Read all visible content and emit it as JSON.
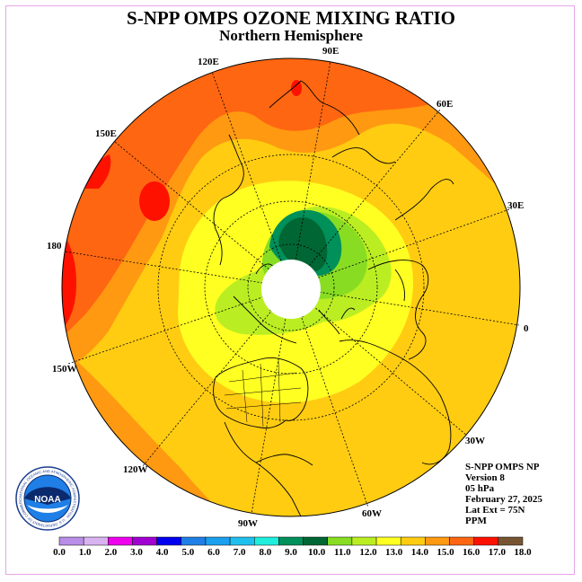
{
  "header": {
    "title": "S-NPP OMPS OZONE MIXING RATIO",
    "subtitle": "Northern Hemisphere"
  },
  "meridian_labels": [
    {
      "text": "90E",
      "id": "meridian-label-90e"
    },
    {
      "text": "120E",
      "id": "meridian-label-120e"
    },
    {
      "text": "60E",
      "id": "meridian-label-60e"
    },
    {
      "text": "150E",
      "id": "meridian-label-150e"
    },
    {
      "text": "30E",
      "id": "meridian-label-30e"
    },
    {
      "text": "180",
      "id": "meridian-label-180"
    },
    {
      "text": "0",
      "id": "meridian-label-0"
    },
    {
      "text": "150W",
      "id": "meridian-label-150w"
    },
    {
      "text": "30W",
      "id": "meridian-label-30w"
    },
    {
      "text": "120W",
      "id": "meridian-label-120w"
    },
    {
      "text": "60W",
      "id": "meridian-label-60w"
    },
    {
      "text": "90W",
      "id": "meridian-label-90w"
    }
  ],
  "info": {
    "product": "S-NPP OMPS NP",
    "version": "Version 8",
    "level": "05 hPa",
    "date": "February 27, 2025",
    "lat_ext": "Lat Ext = 75N",
    "units": "PPM"
  },
  "colorbar": {
    "labels": [
      "0.0",
      "1.0",
      "2.0",
      "3.0",
      "4.0",
      "5.0",
      "6.0",
      "7.0",
      "8.0",
      "9.0",
      "10.0",
      "11.0",
      "12.0",
      "13.0",
      "14.0",
      "15.0",
      "16.0",
      "17.0",
      "18.0"
    ],
    "colors": [
      "#b98ee6",
      "#d9b3f0",
      "#ee00ee",
      "#a000d0",
      "#0000ee",
      "#1f7fe6",
      "#1aa0ee",
      "#20c0ee",
      "#20eedd",
      "#00905a",
      "#006633",
      "#88dd22",
      "#bbee22",
      "#ffff22",
      "#ffcc11",
      "#ff9911",
      "#ff6611",
      "#ff1100",
      "#775533"
    ]
  },
  "logo": {
    "text": "NOAA",
    "ring_text": "NATIONAL OCEANIC AND ATMOSPHERIC ADMINISTRATION · U.S. DEPARTMENT OF COMMERCE"
  }
}
